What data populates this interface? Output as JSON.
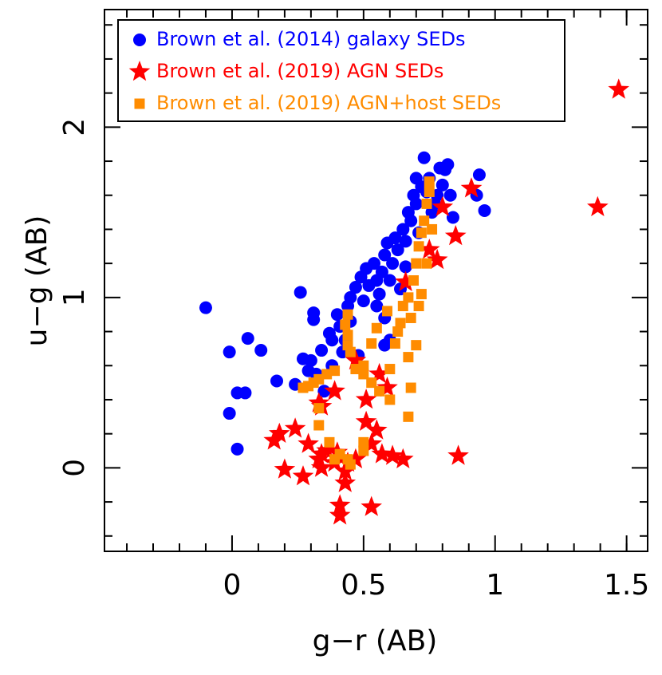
{
  "chart_data": {
    "type": "scatter",
    "x_label": "g−r (AB)",
    "y_label": "u−g (AB)",
    "xlim": [
      -0.485,
      1.58
    ],
    "ylim": [
      -0.49,
      2.69
    ],
    "xticks": [
      0,
      0.5,
      1,
      1.5
    ],
    "yticks": [
      0,
      1,
      2
    ],
    "xminorticks": [
      -0.4,
      -0.3,
      -0.2,
      -0.1,
      0.1,
      0.2,
      0.3,
      0.4,
      0.6,
      0.7,
      0.8,
      0.9,
      1.1,
      1.2,
      1.3,
      1.4,
      1.5
    ],
    "yminorticks": [
      -0.4,
      -0.2,
      0.2,
      0.4,
      0.6,
      0.8,
      1.2,
      1.4,
      1.6,
      1.8,
      2.2,
      2.4,
      2.6
    ],
    "legend": "top-left",
    "series": [
      {
        "name": "Brown et al. (2014) galaxy SEDs",
        "color": "#0000ff",
        "marker": "circle",
        "x": [
          -0.1,
          -0.01,
          -0.01,
          0.02,
          0.02,
          0.05,
          0.06,
          0.11,
          0.17,
          0.24,
          0.27,
          0.3,
          0.29,
          0.32,
          0.34,
          0.35,
          0.26,
          0.31,
          0.31,
          0.37,
          0.38,
          0.4,
          0.41,
          0.42,
          0.44,
          0.45,
          0.47,
          0.48,
          0.49,
          0.5,
          0.51,
          0.52,
          0.54,
          0.55,
          0.56,
          0.57,
          0.58,
          0.58,
          0.59,
          0.6,
          0.61,
          0.62,
          0.63,
          0.64,
          0.65,
          0.66,
          0.67,
          0.68,
          0.69,
          0.7,
          0.7,
          0.71,
          0.72,
          0.73,
          0.74,
          0.75,
          0.76,
          0.77,
          0.78,
          0.79,
          0.8,
          0.81,
          0.82,
          0.83,
          0.84,
          0.94,
          0.96,
          0.93,
          0.6,
          0.58,
          0.43,
          0.38,
          0.55,
          0.45,
          0.66
        ],
        "values": [
          0.94,
          0.68,
          0.32,
          0.11,
          0.44,
          0.44,
          0.76,
          0.69,
          0.51,
          0.49,
          0.64,
          0.63,
          0.57,
          0.55,
          0.69,
          0.45,
          1.03,
          0.87,
          0.91,
          0.79,
          0.75,
          0.9,
          0.83,
          0.68,
          0.95,
          1.0,
          1.06,
          0.66,
          1.12,
          0.98,
          1.17,
          1.07,
          1.2,
          1.1,
          1.02,
          1.15,
          1.25,
          0.88,
          1.32,
          1.1,
          1.2,
          1.35,
          1.28,
          1.05,
          1.4,
          1.33,
          1.5,
          1.45,
          1.6,
          1.7,
          1.55,
          1.38,
          1.65,
          1.82,
          1.62,
          1.7,
          1.5,
          1.55,
          1.6,
          1.76,
          1.66,
          1.75,
          1.78,
          1.6,
          1.47,
          1.72,
          1.51,
          1.6,
          0.75,
          0.72,
          0.75,
          0.6,
          0.95,
          0.86,
          1.18
        ]
      },
      {
        "name": "Brown et al. (2019) AGN SEDs",
        "color": "#ff0000",
        "marker": "star",
        "x": [
          1.47,
          1.39,
          0.91,
          0.8,
          0.85,
          0.78,
          0.75,
          0.66,
          0.47,
          0.56,
          0.59,
          0.39,
          0.33,
          0.34,
          0.51,
          0.51,
          0.18,
          0.16,
          0.24,
          0.29,
          0.2,
          0.27,
          0.33,
          0.34,
          0.36,
          0.34,
          0.39,
          0.43,
          0.44,
          0.43,
          0.41,
          0.41,
          0.53,
          0.47,
          0.55,
          0.53,
          0.61,
          0.65,
          0.86,
          0.57,
          0.4
        ],
        "values": [
          2.22,
          1.53,
          1.64,
          1.53,
          1.36,
          1.22,
          1.28,
          1.09,
          0.63,
          0.55,
          0.47,
          0.45,
          0.38,
          0.36,
          0.4,
          0.27,
          0.2,
          0.16,
          0.23,
          0.14,
          -0.01,
          -0.05,
          0.05,
          0.08,
          0.1,
          0.0,
          0.03,
          -0.02,
          0.03,
          -0.09,
          -0.22,
          -0.28,
          -0.23,
          0.05,
          0.22,
          0.14,
          0.07,
          0.05,
          0.07,
          0.08,
          0.09
        ]
      },
      {
        "name": "Brown et al. (2019) AGN+host SEDs",
        "color": "#ff8c00",
        "marker": "square",
        "x": [
          0.27,
          0.29,
          0.31,
          0.33,
          0.36,
          0.39,
          0.33,
          0.33,
          0.37,
          0.39,
          0.41,
          0.44,
          0.45,
          0.5,
          0.5,
          0.45,
          0.44,
          0.44,
          0.43,
          0.44,
          0.47,
          0.5,
          0.53,
          0.56,
          0.6,
          0.55,
          0.59,
          0.64,
          0.65,
          0.67,
          0.69,
          0.7,
          0.71,
          0.72,
          0.73,
          0.74,
          0.75,
          0.75,
          0.62,
          0.67,
          0.7,
          0.68,
          0.71,
          0.72,
          0.74,
          0.76,
          0.68,
          0.67,
          0.6,
          0.53,
          0.63,
          0.5
        ],
        "values": [
          0.47,
          0.48,
          0.5,
          0.52,
          0.55,
          0.57,
          0.35,
          0.25,
          0.15,
          0.05,
          0.08,
          0.05,
          0.02,
          0.1,
          0.15,
          0.68,
          0.72,
          0.78,
          0.84,
          0.9,
          0.58,
          0.55,
          0.5,
          0.45,
          0.4,
          0.82,
          0.92,
          0.85,
          0.95,
          1.0,
          1.1,
          1.2,
          1.3,
          1.38,
          1.45,
          1.55,
          1.62,
          1.68,
          0.73,
          0.65,
          0.72,
          0.88,
          0.95,
          1.02,
          1.2,
          1.4,
          0.47,
          0.3,
          0.58,
          0.73,
          0.8,
          0.6
        ]
      }
    ]
  }
}
